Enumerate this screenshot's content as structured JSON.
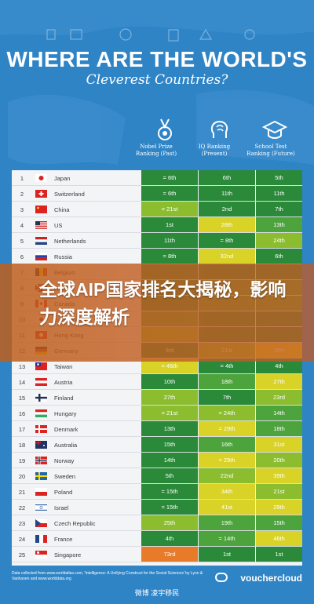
{
  "title": "WHERE ARE THE WORLD'S",
  "subtitle": "Cleverest Countries?",
  "columns": [
    {
      "head": "Nobel Prize Ranking (Past)"
    },
    {
      "head": "IQ Ranking (Present)"
    },
    {
      "head": "School Test Ranking (Future)"
    }
  ],
  "rows": [
    {
      "rank": "1",
      "country": "Japan",
      "nobel": "= 6th",
      "iq": "6th",
      "school": "5th",
      "colors": [
        "g1",
        "g1",
        "g1"
      ]
    },
    {
      "rank": "2",
      "country": "Switzerland",
      "nobel": "= 6th",
      "iq": "11th",
      "school": "11th",
      "colors": [
        "g1",
        "g1",
        "g1"
      ]
    },
    {
      "rank": "3",
      "country": "China",
      "nobel": "= 21st",
      "iq": "2nd",
      "school": "7th",
      "colors": [
        "g3",
        "g1",
        "g1"
      ]
    },
    {
      "rank": "4",
      "country": "US",
      "nobel": "1st",
      "iq": "28th",
      "school": "13th",
      "colors": [
        "g1",
        "y1",
        "g2"
      ]
    },
    {
      "rank": "5",
      "country": "Netherlands",
      "nobel": "11th",
      "iq": "= 8th",
      "school": "24th",
      "colors": [
        "g1",
        "g1",
        "g3"
      ]
    },
    {
      "rank": "6",
      "country": "Russia",
      "nobel": "= 8th",
      "iq": "32nd",
      "school": "6th",
      "colors": [
        "g1",
        "y1",
        "g1"
      ]
    },
    {
      "rank": "7",
      "country": "Belgium",
      "nobel": "",
      "iq": "",
      "school": "",
      "colors": [
        "g1",
        "g1",
        "g1"
      ]
    },
    {
      "rank": "8",
      "country": "UK",
      "nobel": "",
      "iq": "",
      "school": "",
      "colors": [
        "g1",
        "g2",
        "g2"
      ]
    },
    {
      "rank": "9",
      "country": "Canada",
      "nobel": "",
      "iq": "",
      "school": "",
      "colors": [
        "g1",
        "g2",
        "g2"
      ]
    },
    {
      "rank": "10",
      "country": "South Korea",
      "nobel": "",
      "iq": "",
      "school": "",
      "colors": [
        "g2",
        "g1",
        "g1"
      ]
    },
    {
      "rank": "11",
      "country": "Hong Kong",
      "nobel": "",
      "iq": "",
      "school": "",
      "colors": [
        "g3",
        "g1",
        "g1"
      ]
    },
    {
      "rank": "12",
      "country": "Germany",
      "nobel": "3rd",
      "iq": "21st",
      "school": "28th",
      "colors": [
        "g1",
        "g3",
        "y1"
      ]
    },
    {
      "rank": "13",
      "country": "Taiwan",
      "nobel": "= 46th",
      "iq": "= 4th",
      "school": "4th",
      "colors": [
        "y1",
        "g1",
        "g1"
      ]
    },
    {
      "rank": "14",
      "country": "Austria",
      "nobel": "10th",
      "iq": "18th",
      "school": "27th",
      "colors": [
        "g1",
        "g2",
        "y1"
      ]
    },
    {
      "rank": "15",
      "country": "Finland",
      "nobel": "27th",
      "iq": "7th",
      "school": "23rd",
      "colors": [
        "g3",
        "g1",
        "g3"
      ]
    },
    {
      "rank": "16",
      "country": "Hungary",
      "nobel": "= 21st",
      "iq": "= 24th",
      "school": "14th",
      "colors": [
        "g3",
        "g3",
        "g2"
      ]
    },
    {
      "rank": "17",
      "country": "Denmark",
      "nobel": "13th",
      "iq": "= 29th",
      "school": "18th",
      "colors": [
        "g1",
        "y1",
        "g2"
      ]
    },
    {
      "rank": "18",
      "country": "Australia",
      "nobel": "15th",
      "iq": "16th",
      "school": "31st",
      "colors": [
        "g1",
        "g2",
        "y1"
      ]
    },
    {
      "rank": "19",
      "country": "Norway",
      "nobel": "14th",
      "iq": "= 29th",
      "school": "20th",
      "colors": [
        "g1",
        "y1",
        "g3"
      ]
    },
    {
      "rank": "20",
      "country": "Sweden",
      "nobel": "5th",
      "iq": "22nd",
      "school": "39th",
      "colors": [
        "g1",
        "g3",
        "y1"
      ]
    },
    {
      "rank": "21",
      "country": "Poland",
      "nobel": "= 15th",
      "iq": "34th",
      "school": "21st",
      "colors": [
        "g1",
        "y1",
        "g3"
      ]
    },
    {
      "rank": "22",
      "country": "Israel",
      "nobel": "= 15th",
      "iq": "41st",
      "school": "29th",
      "colors": [
        "g1",
        "y1",
        "y1"
      ]
    },
    {
      "rank": "23",
      "country": "Czech Republic",
      "nobel": "25th",
      "iq": "19th",
      "school": "15th",
      "colors": [
        "g3",
        "g2",
        "g2"
      ]
    },
    {
      "rank": "24",
      "country": "France",
      "nobel": "4th",
      "iq": "= 14th",
      "school": "46th",
      "colors": [
        "g1",
        "g2",
        "y1"
      ]
    },
    {
      "rank": "25",
      "country": "Singapore",
      "nobel": "73rd",
      "iq": "1st",
      "school": "1st",
      "colors": [
        "o1",
        "g1",
        "g1"
      ]
    }
  ],
  "footer": "Data collected from www.worldatlas.com, 'Intelligence: A Unifying Construct for the Social Sciences' by Lynn & Vanhanen and www.worlddata.org",
  "brand": "vouchercloud",
  "banner": "全球AIP国家排名大揭秘，影响力深度解析",
  "watermark": "微博 凌宇移民",
  "colors": {
    "background": "#2f84c6",
    "dark_green": "#2a8a3a",
    "green": "#4da33c",
    "light_green": "#8bbd2f",
    "yellow": "#d9d227",
    "orange": "#e87b2a",
    "banner": "#c1601f"
  }
}
